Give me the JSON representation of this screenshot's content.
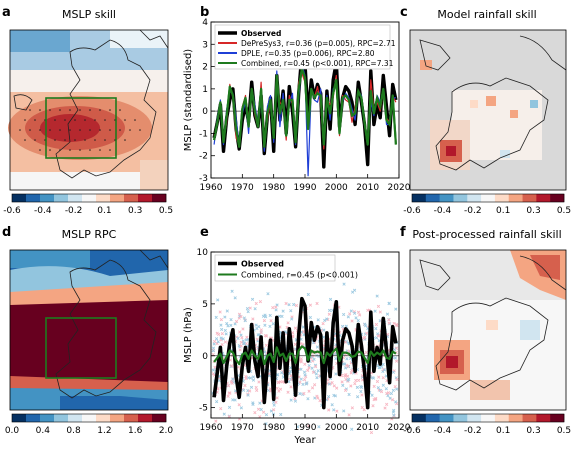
{
  "panels": {
    "a": {
      "letter": "a",
      "title": "MSLP skill"
    },
    "b": {
      "letter": "b"
    },
    "c": {
      "letter": "c",
      "title": "Model rainfall skill"
    },
    "d": {
      "letter": "d",
      "title": "MSLP RPC"
    },
    "e": {
      "letter": "e"
    },
    "f": {
      "letter": "f",
      "title": "Post-processed rainfall skill"
    }
  },
  "colorbars": {
    "skill": {
      "ticks": [
        "-0.6",
        "-0.4",
        "-0.2",
        "0.1",
        "0.3",
        "0.5"
      ],
      "colors": [
        "#053061",
        "#2166ac",
        "#4393c3",
        "#92c5de",
        "#d1e5f0",
        "#f7f7f7",
        "#fddbc7",
        "#f4a582",
        "#d6604d",
        "#b2182b",
        "#67001f"
      ]
    },
    "rpc": {
      "ticks": [
        "0.0",
        "0.4",
        "0.8",
        "1.2",
        "1.6",
        "2.0"
      ],
      "colors": [
        "#053061",
        "#2166ac",
        "#4393c3",
        "#92c5de",
        "#d1e5f0",
        "#f7f7f7",
        "#fddbc7",
        "#f4a582",
        "#d6604d",
        "#b2182b",
        "#67001f"
      ]
    }
  },
  "chart_data": [
    {
      "type": "line",
      "panel": "b",
      "ylabel": "MSLP (standardised)",
      "xlabel": "",
      "xlim": [
        1960,
        2020
      ],
      "ylim": [
        -3,
        4
      ],
      "xticks": [
        "1960",
        "1970",
        "1980",
        "1990",
        "2000",
        "2010",
        "2020"
      ],
      "yticks": [
        "-3",
        "-2",
        "-1",
        "0",
        "1",
        "2",
        "3",
        "4"
      ],
      "x": [
        1961,
        1962,
        1963,
        1964,
        1965,
        1966,
        1967,
        1968,
        1969,
        1970,
        1971,
        1972,
        1973,
        1974,
        1975,
        1976,
        1977,
        1978,
        1979,
        1980,
        1981,
        1982,
        1983,
        1984,
        1985,
        1986,
        1987,
        1988,
        1989,
        1990,
        1991,
        1992,
        1993,
        1994,
        1995,
        1996,
        1997,
        1998,
        1999,
        2000,
        2001,
        2002,
        2003,
        2004,
        2005,
        2006,
        2007,
        2008,
        2009,
        2010,
        2011,
        2012,
        2013,
        2014,
        2015,
        2016,
        2017,
        2018,
        2019
      ],
      "series": [
        {
          "name": "Observed",
          "color": "#000000",
          "values": [
            -1.2,
            -0.5,
            0.3,
            -1.8,
            -0.3,
            0.5,
            1.0,
            -0.8,
            -1.7,
            -0.4,
            0.3,
            -0.5,
            1.3,
            -0.2,
            -0.7,
            0.7,
            -1.9,
            -0.2,
            0.6,
            -1.8,
            1.6,
            -0.4,
            0.9,
            -1.0,
            1.1,
            0.0,
            -1.6,
            0.8,
            2.6,
            2.1,
            -0.2,
            1.4,
            0.6,
            1.2,
            0.8,
            -2.5,
            0.9,
            -0.8,
            1.4,
            2.2,
            -0.7,
            0.6,
            1.1,
            0.9,
            0.4,
            -0.6,
            1.3,
            0.4,
            -0.6,
            -2.4,
            1.8,
            -0.6,
            0.3,
            -0.3,
            1.6,
            0.2,
            -1.1,
            1.2,
            0.5
          ]
        },
        {
          "name": "DePreSys3, r=0.36 (p=0.005), RPC=2.71",
          "color": "#d62728",
          "values": [
            -1.1,
            -0.6,
            0.2,
            -1.3,
            -0.5,
            1.2,
            0.6,
            -1.2,
            -1.5,
            0.2,
            0.7,
            -0.4,
            1.0,
            -0.2,
            -0.7,
            1.3,
            -1.3,
            -0.4,
            0.4,
            -0.9,
            1.4,
            0.4,
            0.2,
            -1.3,
            0.7,
            0.3,
            -1.2,
            1.3,
            1.7,
            1.3,
            -0.6,
            0.9,
            0.6,
            1.1,
            0.3,
            -1.7,
            0.5,
            0.3,
            0.6,
            1.6,
            -1.1,
            0.7,
            0.5,
            0.4,
            -0.5,
            0.2,
            0.9,
            0.6,
            -0.5,
            -1.4,
            1.4,
            0.1,
            0.4,
            0.0,
            0.9,
            -0.3,
            -0.5,
            0.7,
            0.4
          ]
        },
        {
          "name": "DPLE, r=0.35 (p=0.006), RPC=2.80",
          "color": "#1f3fd6",
          "values": [
            -1.5,
            -0.3,
            0.5,
            -1.5,
            0.1,
            0.9,
            0.8,
            -0.3,
            -1.6,
            -0.1,
            0.4,
            -1.0,
            1.0,
            0.3,
            -0.6,
            0.5,
            -1.8,
            0.2,
            0.7,
            -1.4,
            1.8,
            -0.7,
            0.8,
            -0.9,
            0.3,
            0.8,
            -1.5,
            0.6,
            2.1,
            1.6,
            -2.9,
            1.0,
            0.5,
            0.4,
            1.0,
            -1.3,
            0.7,
            -0.4,
            1.0,
            1.2,
            -0.9,
            0.4,
            0.8,
            0.6,
            0.1,
            -0.4,
            0.9,
            0.7,
            -0.6,
            -1.5,
            0.4,
            -0.2,
            0.7,
            0.4,
            1.0,
            -0.6,
            -0.6,
            0.6,
            0.6
          ]
        },
        {
          "name": "Combined, r=0.45 (p<0.001), RPC=7.31",
          "color": "#1e7a1e",
          "values": [
            -1.3,
            -0.5,
            0.4,
            -1.4,
            -0.2,
            1.1,
            0.7,
            -0.8,
            -1.6,
            0.1,
            0.6,
            -0.7,
            1.0,
            0.0,
            -0.7,
            1.0,
            -1.6,
            -0.1,
            0.5,
            -1.2,
            1.6,
            -0.1,
            0.5,
            -1.1,
            0.5,
            0.5,
            -1.4,
            1.0,
            1.9,
            1.5,
            -0.8,
            1.0,
            0.6,
            0.8,
            0.7,
            -1.5,
            0.6,
            -0.1,
            0.8,
            1.4,
            -1.0,
            0.6,
            0.7,
            0.5,
            -0.2,
            -0.1,
            0.9,
            0.6,
            -0.5,
            -1.5,
            0.9,
            -0.1,
            0.6,
            0.2,
            1.0,
            -0.4,
            -0.6,
            0.7,
            -1.5
          ]
        }
      ]
    },
    {
      "type": "line",
      "panel": "e",
      "ylabel": "MSLP (hPa)",
      "xlabel": "Year",
      "xlim": [
        1960,
        2020
      ],
      "ylim": [
        -6,
        10
      ],
      "xticks": [
        "1960",
        "1970",
        "1980",
        "1990",
        "2000",
        "2010",
        "2020"
      ],
      "yticks": [
        "-5",
        "0",
        "5",
        "10"
      ],
      "ensemble_colors": [
        "#f7b6c2",
        "#9ecae1"
      ],
      "x": [
        1961,
        1962,
        1963,
        1964,
        1965,
        1966,
        1967,
        1968,
        1969,
        1970,
        1971,
        1972,
        1973,
        1974,
        1975,
        1976,
        1977,
        1978,
        1979,
        1980,
        1981,
        1982,
        1983,
        1984,
        1985,
        1986,
        1987,
        1988,
        1989,
        1990,
        1991,
        1992,
        1993,
        1994,
        1995,
        1996,
        1997,
        1998,
        1999,
        2000,
        2001,
        2002,
        2003,
        2004,
        2005,
        2006,
        2007,
        2008,
        2009,
        2010,
        2011,
        2012,
        2013,
        2014,
        2015,
        2016,
        2017,
        2018,
        2019
      ],
      "series": [
        {
          "name": "Observed",
          "color": "#000000",
          "values": [
            -4.0,
            -1.6,
            0.8,
            -4.3,
            -1.0,
            1.2,
            2.5,
            -2.0,
            -4.0,
            -1.0,
            0.8,
            -1.5,
            3.0,
            -0.5,
            -2.0,
            1.8,
            -4.5,
            -0.8,
            1.5,
            -4.2,
            3.7,
            -1.2,
            2.2,
            -2.5,
            2.6,
            0.0,
            -3.8,
            2.0,
            5.5,
            4.8,
            -0.5,
            3.2,
            1.5,
            2.8,
            2.0,
            -5.0,
            2.2,
            -2.0,
            3.2,
            5.2,
            -1.8,
            1.5,
            2.6,
            2.2,
            1.0,
            -1.5,
            3.0,
            1.0,
            -1.5,
            -5.0,
            4.2,
            -1.5,
            0.8,
            -0.8,
            3.6,
            0.5,
            -2.6,
            2.8,
            1.2
          ]
        },
        {
          "name": "Combined, r=0.45 (p<0.001)",
          "color": "#1e7a1e",
          "values": [
            -0.6,
            -0.2,
            0.2,
            -0.7,
            -0.1,
            0.5,
            0.3,
            -0.4,
            -0.8,
            0.1,
            0.3,
            -0.3,
            0.5,
            0.0,
            -0.3,
            0.5,
            -0.8,
            0.0,
            0.2,
            -0.6,
            0.8,
            0.0,
            0.2,
            -0.5,
            0.2,
            0.2,
            -0.7,
            0.5,
            0.9,
            0.7,
            -0.4,
            0.5,
            0.3,
            0.4,
            0.3,
            -0.7,
            0.3,
            0.0,
            0.4,
            0.7,
            -0.5,
            0.3,
            0.3,
            0.2,
            -0.1,
            0.0,
            0.4,
            0.3,
            -0.2,
            -0.7,
            0.4,
            0.0,
            0.3,
            0.1,
            0.5,
            -0.2,
            -0.3,
            0.4,
            0.2
          ]
        }
      ]
    }
  ]
}
